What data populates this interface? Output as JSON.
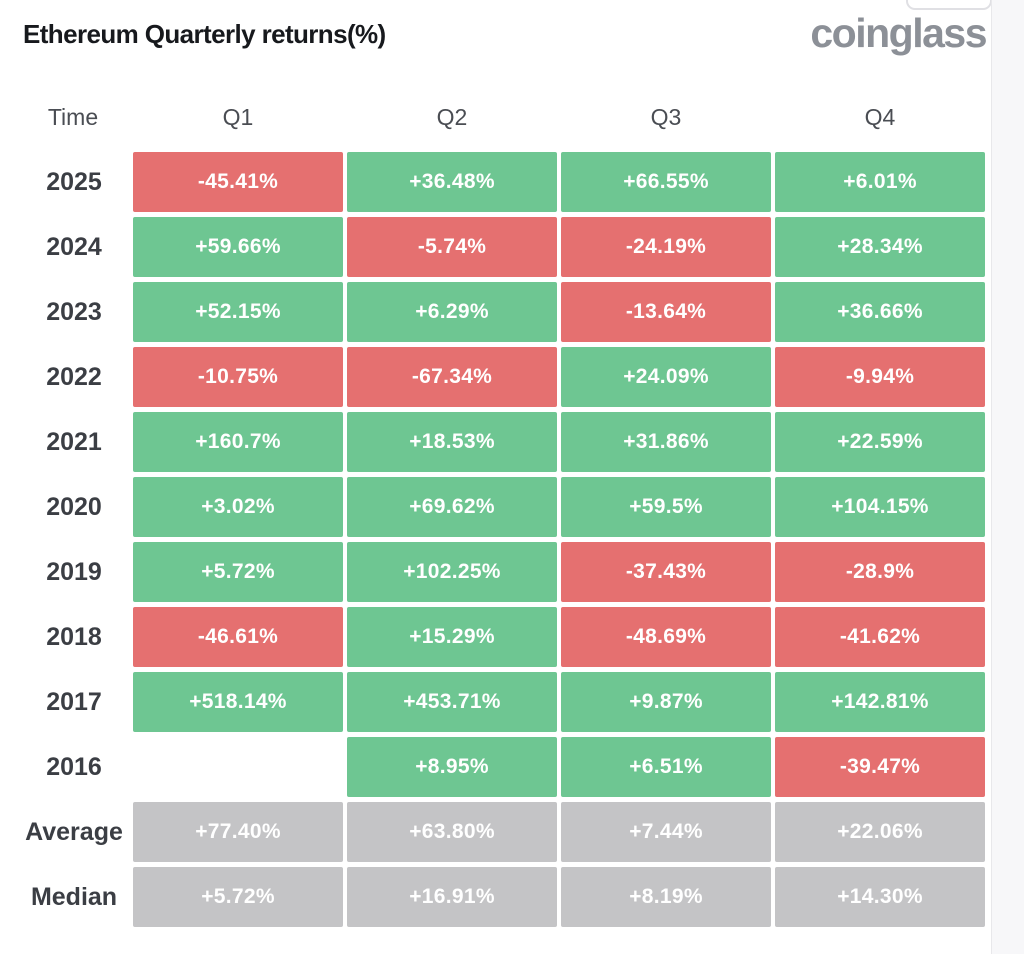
{
  "page": {
    "title": "Ethereum Quarterly returns(%)",
    "logo": "coinglass"
  },
  "table": {
    "columns": [
      "Time",
      "Q1",
      "Q2",
      "Q3",
      "Q4"
    ],
    "rows": [
      {
        "label": "2025",
        "type": "year",
        "values": [
          "-45.41%",
          "+36.48%",
          "+66.55%",
          "+6.01%"
        ]
      },
      {
        "label": "2024",
        "type": "year",
        "values": [
          "+59.66%",
          "-5.74%",
          "-24.19%",
          "+28.34%"
        ]
      },
      {
        "label": "2023",
        "type": "year",
        "values": [
          "+52.15%",
          "+6.29%",
          "-13.64%",
          "+36.66%"
        ]
      },
      {
        "label": "2022",
        "type": "year",
        "values": [
          "-10.75%",
          "-67.34%",
          "+24.09%",
          "-9.94%"
        ]
      },
      {
        "label": "2021",
        "type": "year",
        "values": [
          "+160.7%",
          "+18.53%",
          "+31.86%",
          "+22.59%"
        ]
      },
      {
        "label": "2020",
        "type": "year",
        "values": [
          "+3.02%",
          "+69.62%",
          "+59.5%",
          "+104.15%"
        ]
      },
      {
        "label": "2019",
        "type": "year",
        "values": [
          "+5.72%",
          "+102.25%",
          "-37.43%",
          "-28.9%"
        ]
      },
      {
        "label": "2018",
        "type": "year",
        "values": [
          "-46.61%",
          "+15.29%",
          "-48.69%",
          "-41.62%"
        ]
      },
      {
        "label": "2017",
        "type": "year",
        "values": [
          "+518.14%",
          "+453.71%",
          "+9.87%",
          "+142.81%"
        ]
      },
      {
        "label": "2016",
        "type": "year",
        "values": [
          null,
          "+8.95%",
          "+6.51%",
          "-39.47%"
        ]
      },
      {
        "label": "Average",
        "type": "summary",
        "values": [
          "+77.40%",
          "+63.80%",
          "+7.44%",
          "+22.06%"
        ]
      },
      {
        "label": "Median",
        "type": "summary",
        "values": [
          "+5.72%",
          "+16.91%",
          "+8.19%",
          "+14.30%"
        ]
      }
    ]
  },
  "colors": {
    "positive": "#6ec692",
    "negative": "#e57070",
    "summary": "#c4c4c6",
    "cell_text": "#ffffff",
    "title_text": "#17191d",
    "logo_text": "#8c9097",
    "label_text": "#3b3e44",
    "header_text": "#4a4d53",
    "page_background": "#ffffff",
    "side_strip": "#f7f7f9"
  },
  "chart_data": {
    "type": "heatmap",
    "title": "Ethereum Quarterly returns(%)",
    "categories": [
      "Q1",
      "Q2",
      "Q3",
      "Q4"
    ],
    "row_labels": [
      "2025",
      "2024",
      "2023",
      "2022",
      "2021",
      "2020",
      "2019",
      "2018",
      "2017",
      "2016",
      "Average",
      "Median"
    ],
    "values": [
      [
        -45.41,
        36.48,
        66.55,
        6.01
      ],
      [
        59.66,
        -5.74,
        -24.19,
        28.34
      ],
      [
        52.15,
        6.29,
        -13.64,
        36.66
      ],
      [
        -10.75,
        -67.34,
        24.09,
        -9.94
      ],
      [
        160.7,
        18.53,
        31.86,
        22.59
      ],
      [
        3.02,
        69.62,
        59.5,
        104.15
      ],
      [
        5.72,
        102.25,
        -37.43,
        -28.9
      ],
      [
        -46.61,
        15.29,
        -48.69,
        -41.62
      ],
      [
        518.14,
        453.71,
        9.87,
        142.81
      ],
      [
        null,
        8.95,
        6.51,
        -39.47
      ],
      [
        77.4,
        63.8,
        7.44,
        22.06
      ],
      [
        5.72,
        16.91,
        8.19,
        14.3
      ]
    ],
    "value_unit": "%",
    "color_rule": "positive=green, negative=red, Average/Median rows=gray, missing=blank",
    "legend": "none",
    "grid": "white gaps between cells"
  }
}
